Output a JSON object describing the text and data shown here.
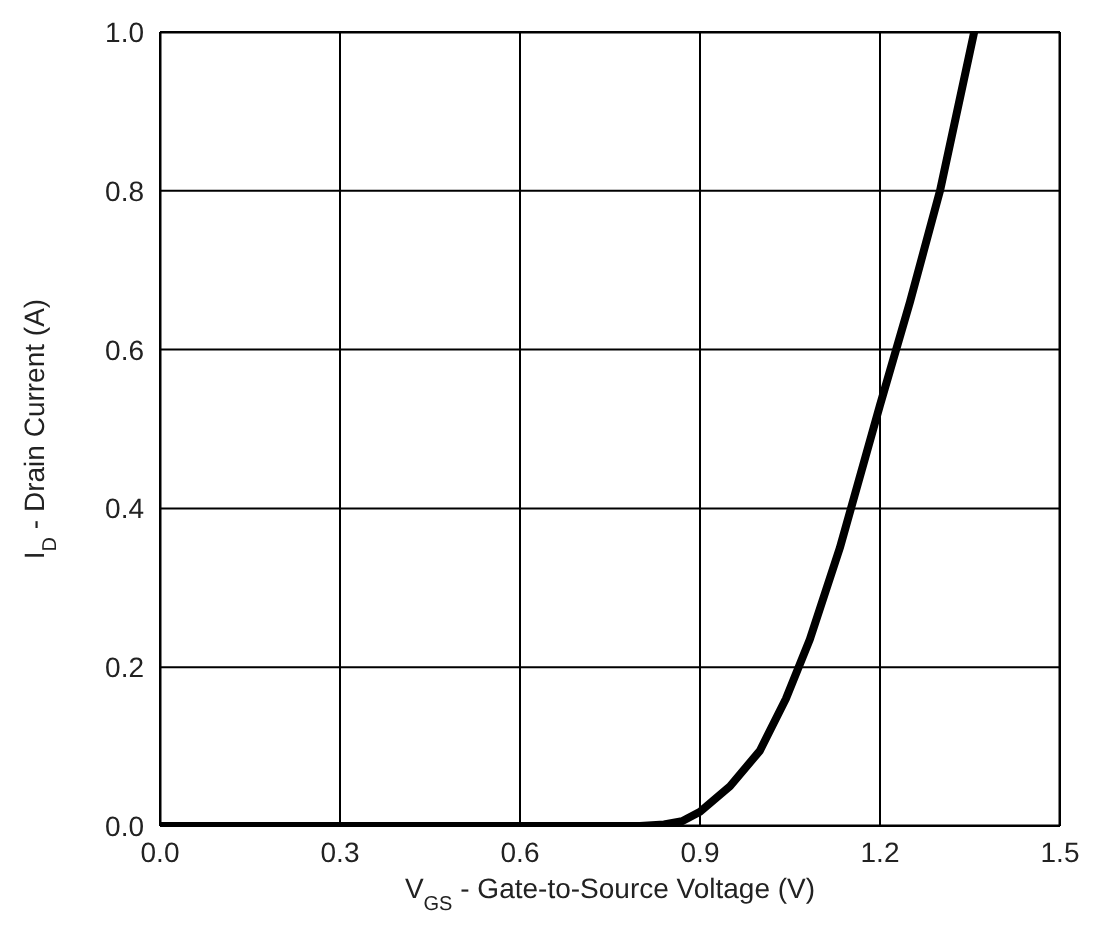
{
  "chart_data": {
    "type": "line",
    "xlabel": "V$_{GS}$ - Gate-to-Source Voltage (V)",
    "ylabel": "I$_{D}$ - Drain Current (A)",
    "x": [
      0,
      0.3,
      0.6,
      0.8,
      0.84,
      0.87,
      0.9,
      0.95,
      1.0,
      1.043,
      1.083,
      1.133,
      1.2,
      1.25,
      1.3,
      1.357
    ],
    "series": [
      {
        "color": "#000000",
        "values": [
          0,
          0,
          0,
          0,
          0.002,
          0.006,
          0.018,
          0.05,
          0.095,
          0.16,
          0.235,
          0.35,
          0.53,
          0.66,
          0.8,
          1.0
        ]
      }
    ],
    "xlim": [
      0,
      1.5
    ],
    "xticks": [
      {
        "value": 0,
        "label": "0.0"
      },
      0.3,
      0.6,
      0.9,
      1.2,
      1.5
    ],
    "ylim": [
      0,
      1
    ],
    "yticks": [
      {
        "value": 0,
        "label": "0.0"
      },
      0.2,
      0.4,
      0.6,
      0.8,
      {
        "value": 1,
        "label": "1.0"
      }
    ],
    "grid": true,
    "marker": "none",
    "line_style": "solid"
  }
}
